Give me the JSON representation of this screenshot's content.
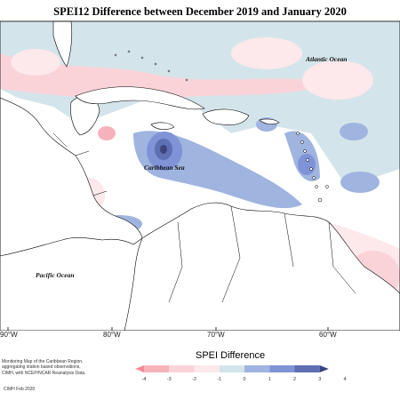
{
  "title": "SPEI12 Difference between December 2019 and January 2020",
  "map": {
    "ocean_labels": {
      "atlantic": "Atlantic Ocean",
      "caribbean": "Caribbean Sea",
      "pacific": "Pacific Ocean"
    },
    "longitude_labels": [
      "90°W",
      "80°W",
      "70°W",
      "60°W"
    ]
  },
  "legend": {
    "title": "SPEI Difference",
    "ticks": [
      "-4",
      "-3",
      "-2",
      "-1",
      "0",
      "1",
      "2",
      "3",
      "4"
    ],
    "colors": [
      "#f28b95",
      "#f6b2ba",
      "#fad3d8",
      "#fde8eb",
      "#d3e5ea",
      "#9fb4df",
      "#7f93d6",
      "#5f6fb3",
      "#3c447f"
    ]
  },
  "description": [
    "Monitoring Map of the Caribbean Region.",
    "aggregating station based observations,",
    "CIMH, with NCEP/NCAR Reanalysis Data."
  ],
  "credit": "CIMH Feb 2020"
}
